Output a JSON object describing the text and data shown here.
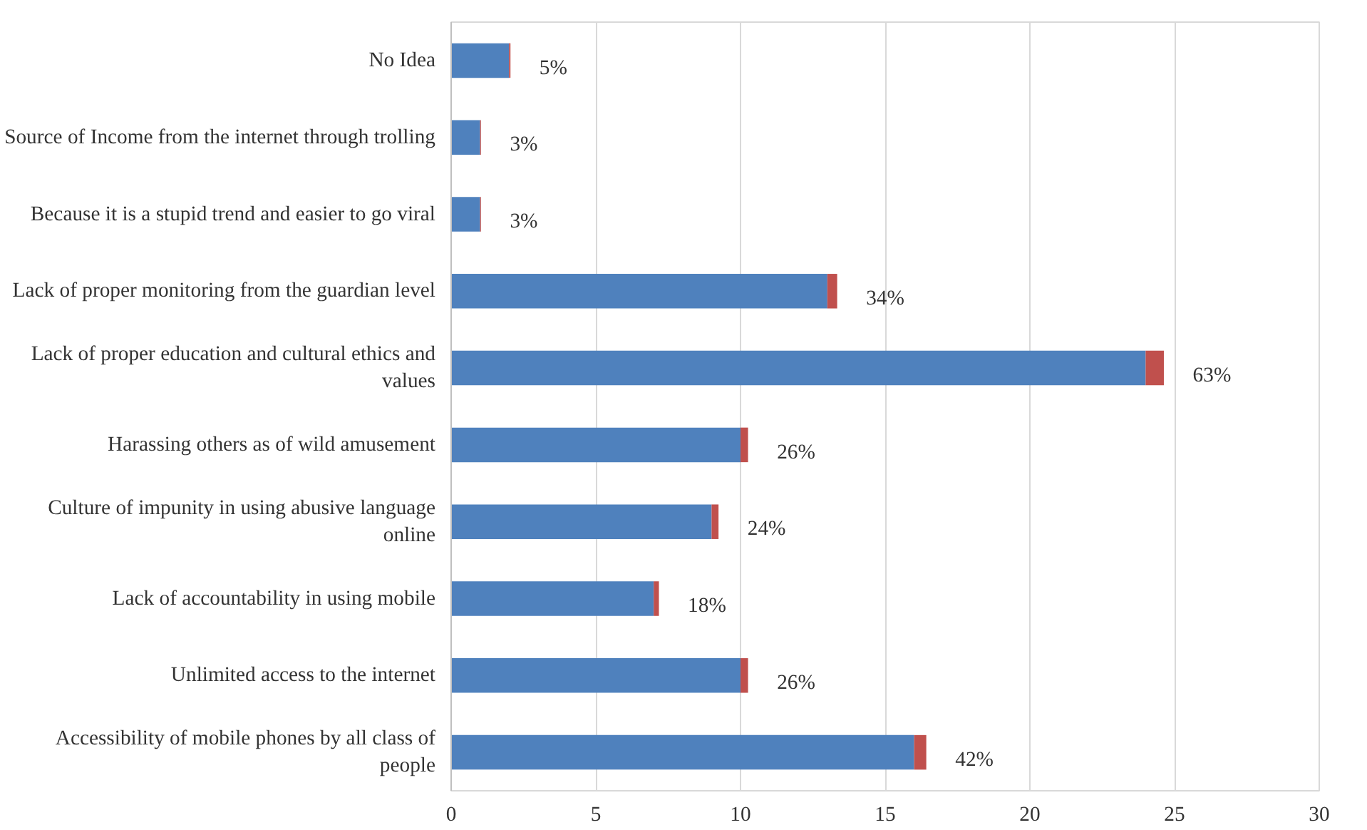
{
  "chart_data": {
    "type": "bar",
    "orientation": "horizontal",
    "stacked": true,
    "categories": [
      "No Idea",
      "Source of Income from the internet through trolling",
      "Because it is a stupid trend and easier to go viral",
      "Lack of proper monitoring from the guardian level",
      "Lack of proper education and cultural ethics and values",
      "Harassing others as of wild amusement",
      "Culture of impunity in using abusive language online",
      "Lack of accountability in using mobile",
      "Unlimited access to the internet",
      "Accessibility of mobile phones by all class of people"
    ],
    "series": [
      {
        "color": "#4f81bd",
        "values": [
          2,
          1,
          1,
          13,
          24,
          10,
          9,
          7,
          10,
          16
        ]
      },
      {
        "color": "#c0504d",
        "values": [
          0.05,
          0.03,
          0.03,
          0.34,
          0.63,
          0.26,
          0.24,
          0.18,
          0.26,
          0.42
        ],
        "value_labels": [
          "5%",
          "3%",
          "3%",
          "34%",
          "63%",
          "26%",
          "24%",
          "18%",
          "26%",
          "42%"
        ]
      }
    ],
    "xlim": [
      0,
      30
    ],
    "xticks": [
      0,
      5,
      10,
      15,
      20,
      25,
      30
    ],
    "grid": "x"
  }
}
